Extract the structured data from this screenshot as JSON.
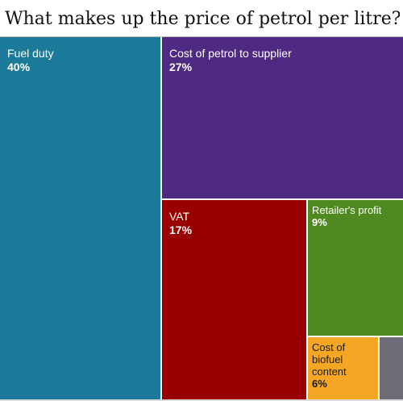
{
  "title": "What makes up the price of petrol per litre?",
  "chart_data": {
    "type": "treemap",
    "title": "What makes up the price of petrol per litre?",
    "unit": "%",
    "segments": [
      {
        "name": "Fuel duty",
        "value": 40,
        "value_label": "40%",
        "color": "#1b7a9a"
      },
      {
        "name": "Cost of petrol to supplier",
        "value": 27,
        "value_label": "27%",
        "color": "#4f2a82"
      },
      {
        "name": "VAT",
        "value": 17,
        "value_label": "17%",
        "color": "#9a0000"
      },
      {
        "name": "Retailer's profit",
        "value": 9,
        "value_label": "9%",
        "color": "#4e8a1f"
      },
      {
        "name": "Cost of\nbiofuel\ncontent",
        "value": 6,
        "value_label": "6%",
        "color": "#f5a623"
      },
      {
        "name": "",
        "value": 1,
        "value_label": "",
        "color": "#6e6e78"
      }
    ]
  }
}
